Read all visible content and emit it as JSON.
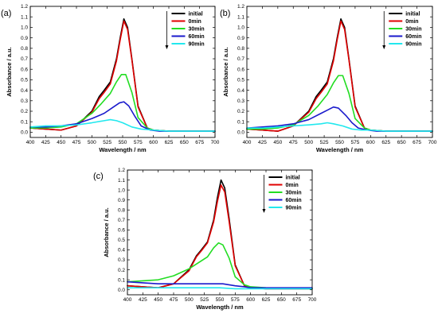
{
  "chart_data": [
    {
      "type": "line",
      "panel_label": "(a)",
      "xlabel": "Wavelength / nm",
      "ylabel": "Absorbance / a.u.",
      "xlim": [
        400,
        700
      ],
      "ylim": [
        -0.05,
        1.2
      ],
      "xticks": [
        400,
        425,
        450,
        475,
        500,
        525,
        550,
        575,
        600,
        625,
        650,
        675,
        700
      ],
      "yticks": [
        0.0,
        0.1,
        0.2,
        0.3,
        0.4,
        0.5,
        0.6,
        0.7,
        0.8,
        0.9,
        1.0,
        1.1,
        1.2
      ],
      "legend_position": "top-right",
      "legend_arrow": "down",
      "series": [
        {
          "name": "initial",
          "color": "#000000",
          "x": [
            400,
            425,
            450,
            475,
            500,
            512,
            520,
            530,
            540,
            546,
            552,
            558,
            565,
            575,
            590,
            600,
            625,
            650,
            700
          ],
          "y": [
            0.04,
            0.03,
            0.02,
            0.06,
            0.2,
            0.34,
            0.4,
            0.48,
            0.7,
            0.9,
            1.08,
            1.0,
            0.7,
            0.25,
            0.04,
            0.02,
            0.01,
            0.01,
            0.01
          ]
        },
        {
          "name": "0min",
          "color": "#e00000",
          "x": [
            400,
            425,
            450,
            475,
            500,
            512,
            520,
            530,
            540,
            546,
            552,
            558,
            565,
            575,
            590,
            600,
            625,
            650,
            700
          ],
          "y": [
            0.04,
            0.03,
            0.02,
            0.06,
            0.19,
            0.32,
            0.38,
            0.46,
            0.68,
            0.88,
            1.06,
            0.98,
            0.69,
            0.24,
            0.04,
            0.02,
            0.01,
            0.01,
            0.01
          ]
        },
        {
          "name": "30min",
          "color": "#22dd22",
          "x": [
            400,
            425,
            450,
            475,
            500,
            515,
            530,
            540,
            548,
            555,
            565,
            575,
            590,
            600,
            625,
            700
          ],
          "y": [
            0.04,
            0.04,
            0.05,
            0.08,
            0.18,
            0.27,
            0.37,
            0.48,
            0.55,
            0.55,
            0.38,
            0.14,
            0.04,
            0.02,
            0.01,
            0.01
          ]
        },
        {
          "name": "60min",
          "color": "#1a1acc",
          "x": [
            400,
            425,
            450,
            475,
            500,
            520,
            535,
            545,
            552,
            560,
            570,
            580,
            595,
            610,
            700
          ],
          "y": [
            0.05,
            0.05,
            0.06,
            0.08,
            0.13,
            0.18,
            0.24,
            0.28,
            0.29,
            0.25,
            0.15,
            0.06,
            0.02,
            0.01,
            0.01
          ]
        },
        {
          "name": "90min",
          "color": "#22e8ee",
          "x": [
            400,
            425,
            450,
            475,
            500,
            520,
            530,
            540,
            550,
            565,
            580,
            600,
            625,
            700
          ],
          "y": [
            0.05,
            0.06,
            0.06,
            0.07,
            0.09,
            0.11,
            0.12,
            0.11,
            0.09,
            0.05,
            0.03,
            0.02,
            0.01,
            0.01
          ]
        }
      ]
    },
    {
      "type": "line",
      "panel_label": "(b)",
      "xlabel": "Wavelength / nm",
      "ylabel": "Absorbance / a.u.",
      "xlim": [
        400,
        700
      ],
      "ylim": [
        -0.05,
        1.2
      ],
      "xticks": [
        400,
        425,
        450,
        475,
        500,
        525,
        550,
        575,
        600,
        625,
        650,
        675,
        700
      ],
      "yticks": [
        0.0,
        0.1,
        0.2,
        0.3,
        0.4,
        0.5,
        0.6,
        0.7,
        0.8,
        0.9,
        1.0,
        1.1,
        1.2
      ],
      "legend_position": "top-right",
      "legend_arrow": "down",
      "series": [
        {
          "name": "initial",
          "color": "#000000",
          "x": [
            400,
            425,
            450,
            475,
            500,
            512,
            520,
            530,
            540,
            546,
            552,
            558,
            565,
            575,
            590,
            600,
            625,
            650,
            700
          ],
          "y": [
            0.03,
            0.02,
            0.01,
            0.06,
            0.2,
            0.34,
            0.4,
            0.48,
            0.7,
            0.9,
            1.08,
            1.0,
            0.7,
            0.25,
            0.04,
            0.02,
            0.01,
            0.01,
            0.01
          ]
        },
        {
          "name": "0min",
          "color": "#e00000",
          "x": [
            400,
            425,
            450,
            475,
            500,
            512,
            520,
            530,
            540,
            546,
            552,
            558,
            565,
            575,
            590,
            600,
            625,
            650,
            700
          ],
          "y": [
            0.03,
            0.02,
            0.01,
            0.06,
            0.19,
            0.32,
            0.38,
            0.46,
            0.68,
            0.88,
            1.06,
            0.98,
            0.69,
            0.24,
            0.04,
            0.02,
            0.01,
            0.01,
            0.01
          ]
        },
        {
          "name": "30min",
          "color": "#22dd22",
          "x": [
            400,
            425,
            450,
            475,
            500,
            515,
            530,
            540,
            548,
            555,
            565,
            575,
            590,
            600,
            625,
            700
          ],
          "y": [
            0.03,
            0.03,
            0.04,
            0.07,
            0.16,
            0.25,
            0.36,
            0.47,
            0.54,
            0.54,
            0.37,
            0.13,
            0.04,
            0.02,
            0.01,
            0.01
          ]
        },
        {
          "name": "60min",
          "color": "#1a1acc",
          "x": [
            400,
            425,
            450,
            475,
            500,
            520,
            530,
            540,
            548,
            560,
            570,
            580,
            595,
            610,
            700
          ],
          "y": [
            0.04,
            0.05,
            0.06,
            0.08,
            0.12,
            0.18,
            0.21,
            0.24,
            0.23,
            0.16,
            0.09,
            0.04,
            0.02,
            0.01,
            0.01
          ]
        },
        {
          "name": "90min",
          "color": "#22e8ee",
          "x": [
            400,
            425,
            450,
            475,
            500,
            520,
            530,
            540,
            555,
            570,
            585,
            600,
            625,
            700
          ],
          "y": [
            0.04,
            0.04,
            0.05,
            0.06,
            0.07,
            0.08,
            0.09,
            0.08,
            0.06,
            0.03,
            0.02,
            0.02,
            0.01,
            0.01
          ]
        }
      ]
    },
    {
      "type": "line",
      "panel_label": "(c)",
      "xlabel": "Wavelength / nm",
      "ylabel": "Absorbance / a.u.",
      "xlim": [
        400,
        700
      ],
      "ylim": [
        -0.05,
        1.2
      ],
      "xticks": [
        400,
        425,
        450,
        475,
        500,
        525,
        550,
        575,
        600,
        625,
        650,
        675,
        700
      ],
      "yticks": [
        0.0,
        0.1,
        0.2,
        0.3,
        0.4,
        0.5,
        0.6,
        0.7,
        0.8,
        0.9,
        1.0,
        1.1,
        1.2
      ],
      "legend_position": "top-right",
      "legend_arrow": "down",
      "series": [
        {
          "name": "initial",
          "color": "#000000",
          "x": [
            400,
            425,
            450,
            475,
            500,
            512,
            520,
            530,
            540,
            546,
            552,
            558,
            565,
            575,
            590,
            600,
            625,
            650,
            700
          ],
          "y": [
            0.04,
            0.03,
            0.02,
            0.06,
            0.2,
            0.34,
            0.4,
            0.48,
            0.7,
            0.92,
            1.1,
            1.02,
            0.72,
            0.25,
            0.04,
            0.02,
            0.01,
            0.01,
            0.01
          ]
        },
        {
          "name": "0min",
          "color": "#e00000",
          "x": [
            400,
            425,
            450,
            475,
            500,
            512,
            520,
            530,
            540,
            546,
            552,
            558,
            565,
            575,
            590,
            600,
            625,
            650,
            700
          ],
          "y": [
            0.04,
            0.03,
            0.02,
            0.06,
            0.19,
            0.33,
            0.39,
            0.47,
            0.68,
            0.88,
            1.05,
            0.98,
            0.69,
            0.24,
            0.04,
            0.02,
            0.01,
            0.01,
            0.01
          ]
        },
        {
          "name": "30min",
          "color": "#22dd22",
          "x": [
            400,
            425,
            450,
            475,
            500,
            515,
            530,
            540,
            548,
            555,
            565,
            575,
            590,
            600,
            625,
            700
          ],
          "y": [
            0.08,
            0.09,
            0.1,
            0.14,
            0.21,
            0.27,
            0.33,
            0.42,
            0.47,
            0.45,
            0.32,
            0.13,
            0.05,
            0.03,
            0.02,
            0.01
          ]
        },
        {
          "name": "60min",
          "color": "#1a1acc",
          "x": [
            400,
            425,
            450,
            475,
            500,
            525,
            545,
            555,
            565,
            575,
            590,
            600,
            625,
            650,
            700
          ],
          "y": [
            0.08,
            0.07,
            0.06,
            0.06,
            0.06,
            0.06,
            0.06,
            0.06,
            0.05,
            0.04,
            0.03,
            0.02,
            0.02,
            0.02,
            0.02
          ]
        },
        {
          "name": "90min",
          "color": "#22e8ee",
          "x": [
            400,
            425,
            450,
            475,
            500,
            525,
            550,
            575,
            600,
            625,
            650,
            700
          ],
          "y": [
            0.02,
            0.02,
            0.02,
            0.02,
            0.02,
            0.02,
            0.02,
            0.01,
            0.01,
            0.01,
            0.01,
            0.01
          ]
        }
      ]
    }
  ]
}
